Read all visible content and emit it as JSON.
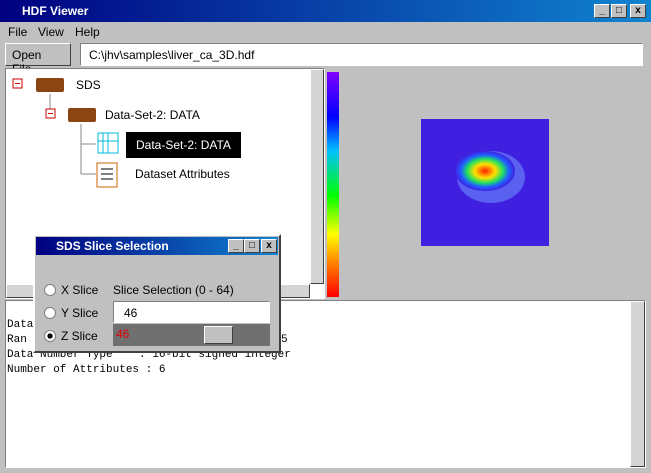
{
  "window": {
    "title": "HDF Viewer"
  },
  "menu": [
    "File",
    "View",
    "Help"
  ],
  "toolbar": {
    "button": "Open File",
    "path": "C:\\jhv\\samples\\liver_ca_3D.hdf"
  },
  "tree": {
    "nodes": [
      {
        "label": "SDS"
      },
      {
        "label": "Data-Set-2: DATA"
      },
      {
        "label": "Data-Set-2: DATA"
      },
      {
        "label": "Dataset Attributes"
      }
    ]
  },
  "info": {
    "lines": [
      "Data",
      "Ran",
      "Data Number Type    : 16-bit signed integer",
      "Number of Attributes : 6"
    ],
    "fragment": "5"
  },
  "dialog": {
    "title": "SDS Slice Selection",
    "options": [
      "X Slice",
      "Y Slice",
      "Z Slice"
    ],
    "range_label": "Slice Selection (0 - 64)",
    "field": "46",
    "slider_label": "46"
  }
}
